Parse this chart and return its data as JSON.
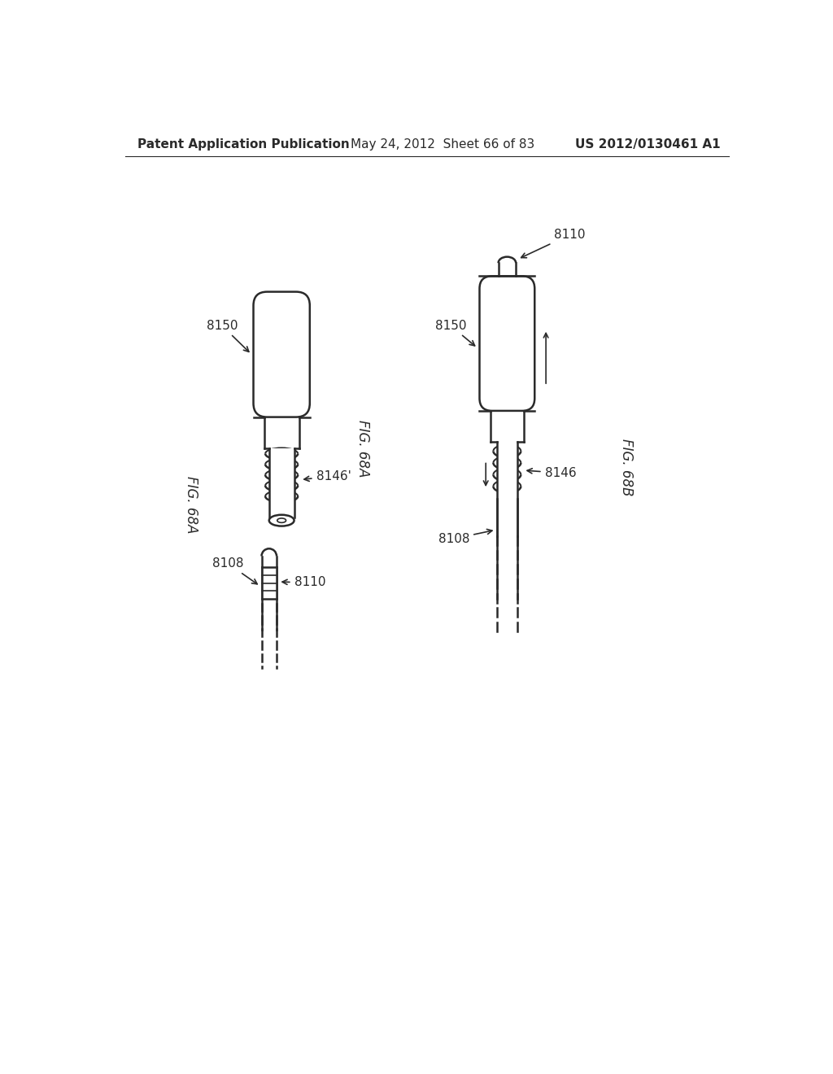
{
  "header_left": "Patent Application Publication",
  "header_mid": "May 24, 2012  Sheet 66 of 83",
  "header_right": "US 2012/0130461 A1",
  "fig_a_label": "FIG. 68A",
  "fig_b_label": "FIG. 68B",
  "bg_color": "#ffffff",
  "line_color": "#2a2a2a",
  "font_size_header": 11,
  "font_size_label": 11,
  "font_size_fig": 12
}
